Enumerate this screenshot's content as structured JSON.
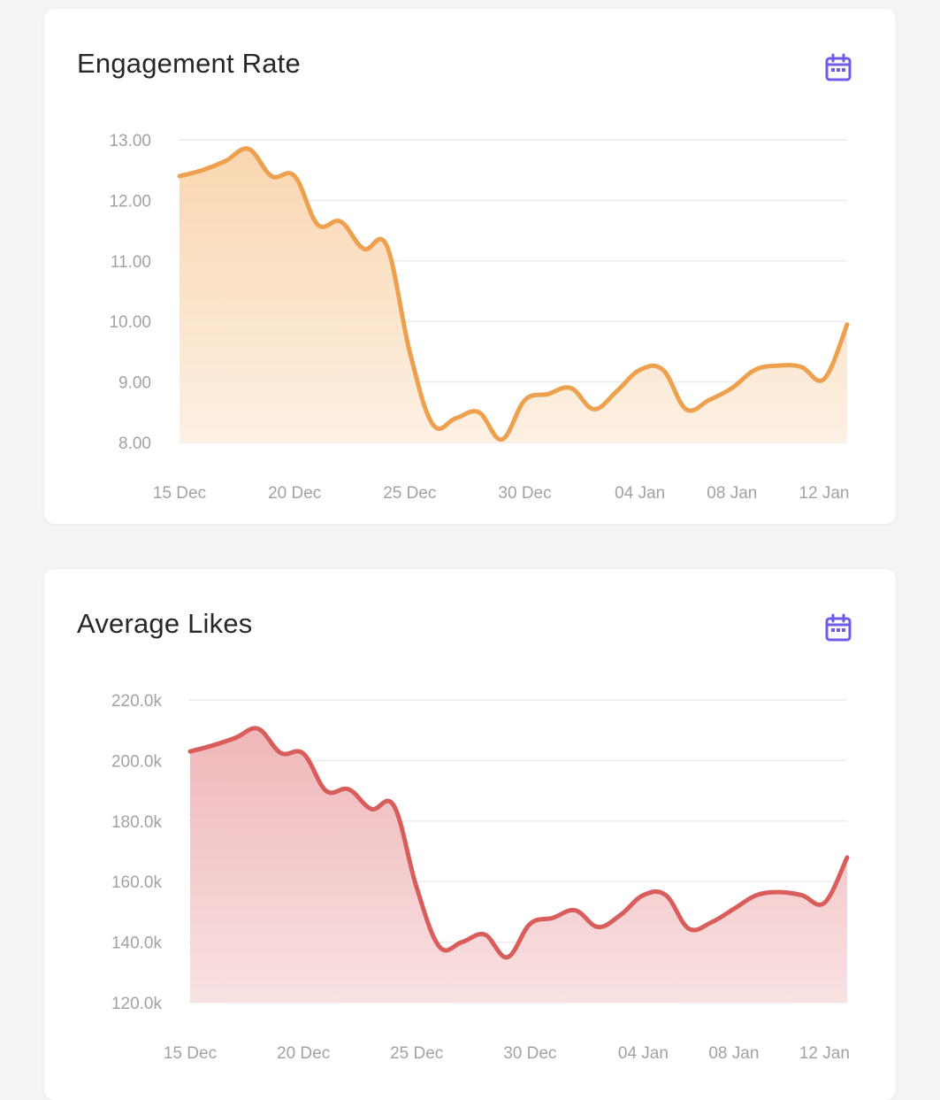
{
  "charts": {
    "engagement": {
      "title": "Engagement Rate",
      "icon": "calendar-icon",
      "color": "#eda14f",
      "fill_top": "#f9d6b0",
      "fill_bottom": "#fdf0e3",
      "y_ticks": [
        "8.00",
        "9.00",
        "10.00",
        "11.00",
        "12.00",
        "13.00"
      ],
      "x_ticks": [
        "15 Dec",
        "20 Dec",
        "25 Dec",
        "30 Dec",
        "04 Jan",
        "08 Jan",
        "12 Jan"
      ]
    },
    "likes": {
      "title": "Average Likes",
      "icon": "calendar-icon",
      "color": "#d85d5b",
      "fill_top": "#efb7b9",
      "fill_bottom": "#f9e1e2",
      "y_ticks": [
        "120.0k",
        "140.0k",
        "160.0k",
        "180.0k",
        "200.0k",
        "220.0k"
      ],
      "x_ticks": [
        "15 Dec",
        "20 Dec",
        "25 Dec",
        "30 Dec",
        "04 Jan",
        "08 Jan",
        "12 Jan"
      ]
    }
  },
  "icon_color": "#6e5ce6",
  "chart_data": [
    {
      "type": "area",
      "title": "Engagement Rate",
      "xlabel": "",
      "ylabel": "",
      "ylim": [
        8,
        13
      ],
      "x": [
        "15 Dec",
        "16 Dec",
        "17 Dec",
        "18 Dec",
        "19 Dec",
        "20 Dec",
        "21 Dec",
        "22 Dec",
        "23 Dec",
        "24 Dec",
        "25 Dec",
        "26 Dec",
        "27 Dec",
        "28 Dec",
        "29 Dec",
        "30 Dec",
        "31 Dec",
        "01 Jan",
        "02 Jan",
        "03 Jan",
        "04 Jan",
        "05 Jan",
        "06 Jan",
        "07 Jan",
        "08 Jan",
        "09 Jan",
        "10 Jan",
        "11 Jan",
        "12 Jan",
        "13 Jan"
      ],
      "x_ticks": [
        "15 Dec",
        "20 Dec",
        "25 Dec",
        "30 Dec",
        "04 Jan",
        "08 Jan",
        "12 Jan"
      ],
      "values": [
        12.4,
        12.5,
        12.65,
        12.85,
        12.4,
        12.4,
        11.6,
        11.65,
        11.2,
        11.25,
        9.5,
        8.3,
        8.4,
        8.5,
        8.05,
        8.7,
        8.8,
        8.9,
        8.55,
        8.85,
        9.2,
        9.2,
        8.55,
        8.7,
        8.9,
        9.2,
        9.27,
        9.25,
        9.05,
        9.95
      ]
    },
    {
      "type": "area",
      "title": "Average Likes",
      "xlabel": "",
      "ylabel": "",
      "ylim": [
        120,
        220
      ],
      "x": [
        "15 Dec",
        "16 Dec",
        "17 Dec",
        "18 Dec",
        "19 Dec",
        "20 Dec",
        "21 Dec",
        "22 Dec",
        "23 Dec",
        "24 Dec",
        "25 Dec",
        "26 Dec",
        "27 Dec",
        "28 Dec",
        "29 Dec",
        "30 Dec",
        "31 Dec",
        "01 Jan",
        "02 Jan",
        "03 Jan",
        "04 Jan",
        "05 Jan",
        "06 Jan",
        "07 Jan",
        "08 Jan",
        "09 Jan",
        "10 Jan",
        "11 Jan",
        "12 Jan",
        "13 Jan"
      ],
      "x_ticks": [
        "15 Dec",
        "20 Dec",
        "25 Dec",
        "30 Dec",
        "04 Jan",
        "08 Jan",
        "12 Jan"
      ],
      "values": [
        203,
        205,
        207.5,
        210.5,
        202.5,
        202.3,
        190,
        190.5,
        184,
        185,
        158,
        138.5,
        140,
        142.5,
        135,
        146,
        148,
        150.5,
        145,
        149,
        155.5,
        155.5,
        144.5,
        146.5,
        151,
        155.5,
        156.5,
        155.5,
        153,
        168
      ]
    }
  ]
}
